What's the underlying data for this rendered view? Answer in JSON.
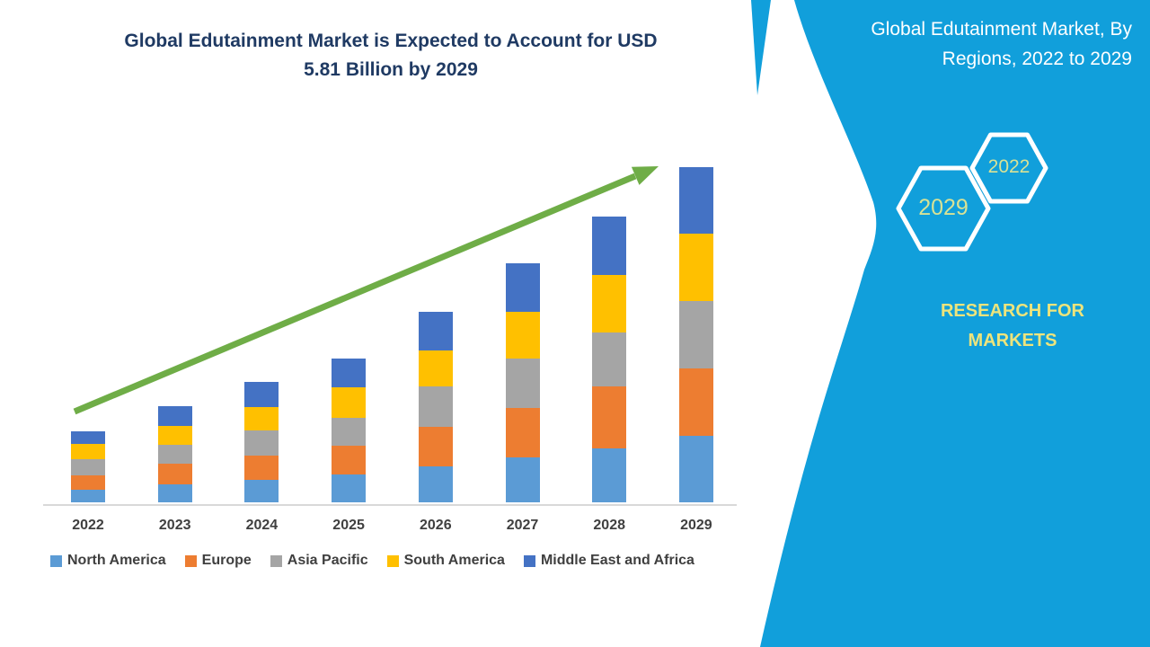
{
  "chart": {
    "title_lines": [
      "Global Edutainment Market is Expected to Account for USD",
      "5.81 Billion by 2029"
    ],
    "title_color": "#1f3a63",
    "axis_line_color": "#d9d9d9",
    "trend_arrow_color": "#6fad47"
  },
  "chart_data": {
    "type": "bar",
    "subtype": "stacked-vertical",
    "title": "Global Edutainment Market is Expected to Account for USD 5.81 Billion by 2029",
    "unit": "USD billion",
    "categories": [
      "2022",
      "2023",
      "2024",
      "2025",
      "2026",
      "2027",
      "2028",
      "2029"
    ],
    "series": [
      {
        "name": "North America",
        "color": "#5B9BD5",
        "values": [
          0.22,
          0.31,
          0.39,
          0.48,
          0.62,
          0.78,
          0.93,
          1.15
        ]
      },
      {
        "name": "Europe",
        "color": "#ED7D31",
        "values": [
          0.25,
          0.36,
          0.42,
          0.5,
          0.69,
          0.86,
          1.08,
          1.17
        ]
      },
      {
        "name": "Asia Pacific",
        "color": "#A5A5A5",
        "values": [
          0.28,
          0.33,
          0.44,
          0.48,
          0.7,
          0.86,
          0.93,
          1.17
        ]
      },
      {
        "name": "South America",
        "color": "#FFC000",
        "values": [
          0.26,
          0.33,
          0.4,
          0.53,
          0.62,
          0.81,
          1.01,
          1.17
        ]
      },
      {
        "name": "Middle East and Africa",
        "color": "#4472C4",
        "values": [
          0.22,
          0.33,
          0.44,
          0.5,
          0.67,
          0.84,
          1.01,
          1.15
        ]
      }
    ],
    "totals": [
      1.23,
      1.66,
      2.09,
      2.49,
      3.3,
      4.15,
      4.96,
      5.81
    ],
    "ylim": [
      0,
      6
    ],
    "grid": false,
    "legend_position": "bottom",
    "annotations": [
      "green upward trend arrow from 2022 toward 2029 bar top"
    ]
  },
  "side_panel": {
    "background_color": "#119fdb",
    "title_lines": [
      "Global Edutainment Market, By",
      "Regions, 2022 to 2029"
    ],
    "hexagons": [
      {
        "label": "2029"
      },
      {
        "label": "2022"
      }
    ],
    "brand_lines": [
      "RESEARCH FOR",
      "MARKETS"
    ],
    "brand_color": "#ede47c",
    "hexagon_text_color": "#d8e295"
  }
}
